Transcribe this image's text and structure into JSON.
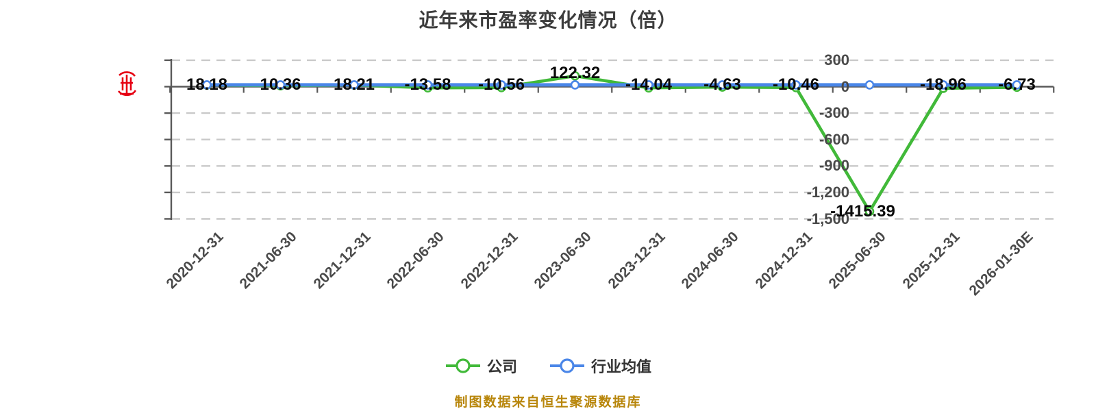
{
  "title": "近年来市盈率变化情况（倍）",
  "legend": {
    "items": [
      {
        "label": "公司",
        "color": "#41b939"
      },
      {
        "label": "行业均值",
        "color": "#4a86e8"
      }
    ]
  },
  "footer": {
    "text": "制图数据来自恒生聚源数据库",
    "color": "#b8860b"
  },
  "red_seal_icon": {
    "color": "#e60012"
  },
  "chart_data": {
    "type": "line",
    "title": "近年来市盈率变化情况（倍）",
    "categories": [
      "2020-12-31",
      "2021-06-30",
      "2021-12-31",
      "2022-06-30",
      "2022-12-31",
      "2023-06-30",
      "2023-12-31",
      "2024-06-30",
      "2024-12-31",
      "2025-06-30",
      "2025-12-31",
      "2026-01-30E"
    ],
    "series": [
      {
        "name": "公司",
        "color": "#41b939",
        "values": [
          18.18,
          10.36,
          18.21,
          -13.58,
          -10.56,
          122.32,
          -14.04,
          -4.63,
          -10.46,
          -1415.39,
          -18.96,
          -6.73
        ],
        "labels": [
          "18.18",
          "10.36",
          "18.21",
          "-13.58",
          "-10.56",
          "122.32",
          "-14.04",
          "-4.63",
          "-10.46",
          "-1415.39",
          "-18.96",
          "-6.73"
        ]
      },
      {
        "name": "行业均值",
        "color": "#4a86e8",
        "values": [
          20,
          20,
          20,
          20,
          20,
          20,
          20,
          20,
          20,
          20,
          20,
          20
        ],
        "values_labeled": false,
        "note": "line drawn flat just above 0; exact values not shown, estimated from pixels"
      }
    ],
    "yticks": [
      {
        "value": 300,
        "label": "300"
      },
      {
        "value": 0,
        "label": "0"
      },
      {
        "value": -300,
        "label": "-300"
      },
      {
        "value": -600,
        "label": "-600"
      },
      {
        "value": -900,
        "label": "-900"
      },
      {
        "value": -1200,
        "label": "-1,200"
      },
      {
        "value": -1500,
        "label": "-1,500"
      }
    ],
    "ylim": [
      -1500,
      300
    ],
    "grid": "dashed-horizontal-gridlines",
    "legend_position": "bottom",
    "colors": {
      "grid": "#c9c9c9",
      "axis": "#595959",
      "label": "#0a0a0a",
      "axis_text": "#4a4a4a"
    }
  }
}
